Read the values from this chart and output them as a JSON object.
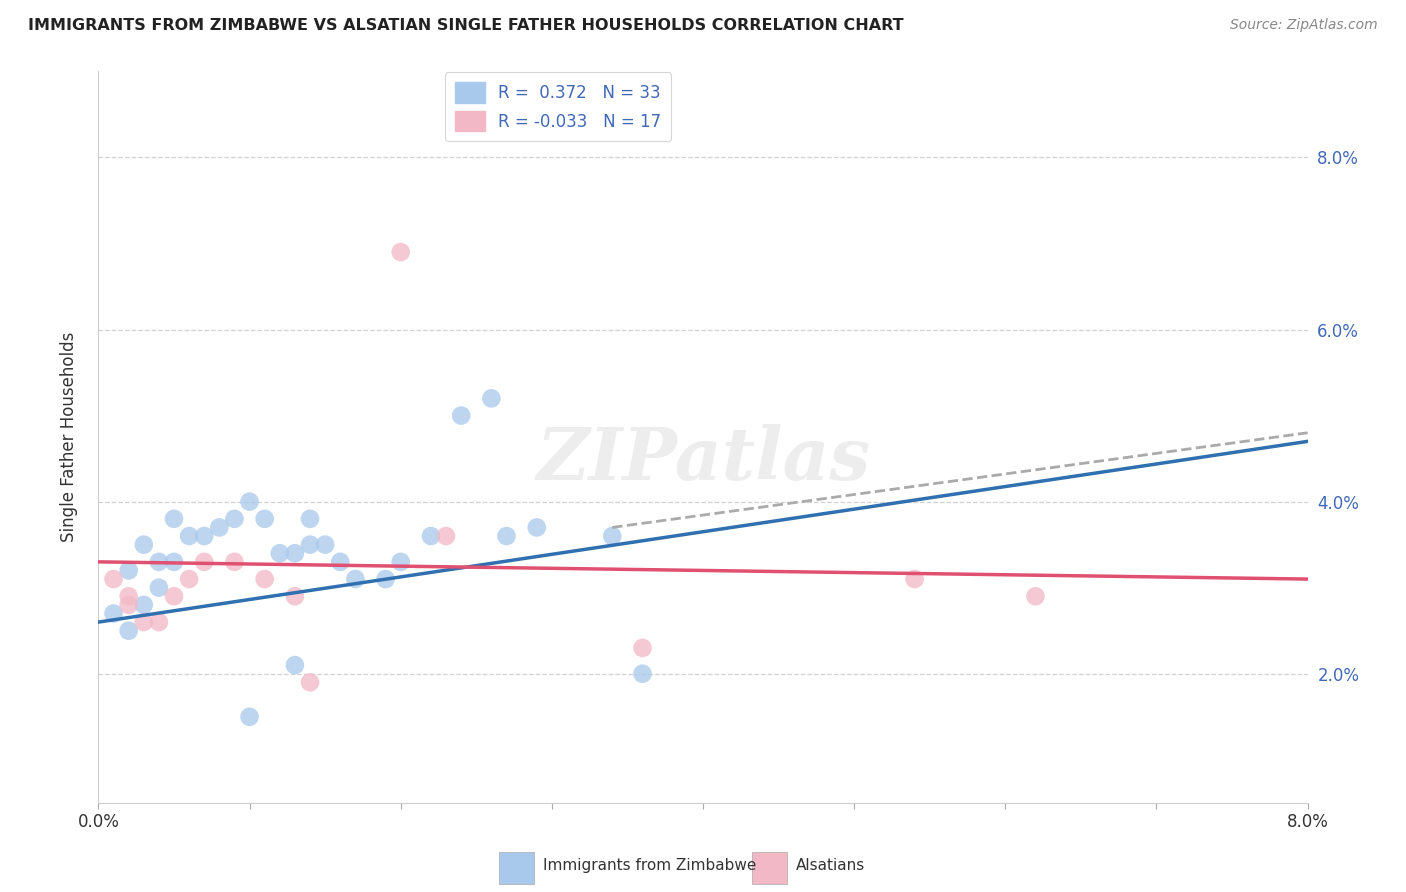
{
  "title": "IMMIGRANTS FROM ZIMBABWE VS ALSATIAN SINGLE FATHER HOUSEHOLDS CORRELATION CHART",
  "source": "Source: ZipAtlas.com",
  "ylabel": "Single Father Households",
  "xlim": [
    0.0,
    0.08
  ],
  "ylim": [
    0.005,
    0.09
  ],
  "xticks": [
    0.0,
    0.01,
    0.02,
    0.03,
    0.04,
    0.05,
    0.06,
    0.07,
    0.08
  ],
  "xtick_labels": [
    "0.0%",
    "",
    "",
    "",
    "",
    "",
    "",
    "",
    "8.0%"
  ],
  "yticks_right": [
    0.02,
    0.04,
    0.06,
    0.08
  ],
  "ytick_labels_right": [
    "2.0%",
    "4.0%",
    "6.0%",
    "8.0%"
  ],
  "yticks_grid": [
    0.02,
    0.04,
    0.06,
    0.08
  ],
  "blue_color": "#A8C8EC",
  "pink_color": "#F2B8C6",
  "line_blue": "#3070B0",
  "line_pink": "#E05070",
  "line_gray_dash": "#AAAAAA",
  "background_color": "#FFFFFF",
  "watermark_text": "ZIPatlas",
  "blue_points": [
    [
      0.001,
      0.027
    ],
    [
      0.002,
      0.025
    ],
    [
      0.003,
      0.028
    ],
    [
      0.004,
      0.03
    ],
    [
      0.002,
      0.032
    ],
    [
      0.003,
      0.035
    ],
    [
      0.004,
      0.033
    ],
    [
      0.005,
      0.033
    ],
    [
      0.005,
      0.038
    ],
    [
      0.006,
      0.036
    ],
    [
      0.007,
      0.036
    ],
    [
      0.008,
      0.037
    ],
    [
      0.009,
      0.038
    ],
    [
      0.01,
      0.04
    ],
    [
      0.011,
      0.038
    ],
    [
      0.012,
      0.034
    ],
    [
      0.013,
      0.034
    ],
    [
      0.014,
      0.038
    ],
    [
      0.014,
      0.035
    ],
    [
      0.015,
      0.035
    ],
    [
      0.016,
      0.033
    ],
    [
      0.017,
      0.031
    ],
    [
      0.019,
      0.031
    ],
    [
      0.02,
      0.033
    ],
    [
      0.022,
      0.036
    ],
    [
      0.024,
      0.05
    ],
    [
      0.026,
      0.052
    ],
    [
      0.027,
      0.036
    ],
    [
      0.029,
      0.037
    ],
    [
      0.034,
      0.036
    ],
    [
      0.036,
      0.02
    ],
    [
      0.01,
      0.015
    ],
    [
      0.013,
      0.021
    ]
  ],
  "pink_points": [
    [
      0.001,
      0.031
    ],
    [
      0.002,
      0.029
    ],
    [
      0.002,
      0.028
    ],
    [
      0.003,
      0.026
    ],
    [
      0.004,
      0.026
    ],
    [
      0.005,
      0.029
    ],
    [
      0.006,
      0.031
    ],
    [
      0.007,
      0.033
    ],
    [
      0.009,
      0.033
    ],
    [
      0.011,
      0.031
    ],
    [
      0.013,
      0.029
    ],
    [
      0.014,
      0.019
    ],
    [
      0.02,
      0.069
    ],
    [
      0.023,
      0.036
    ],
    [
      0.054,
      0.031
    ],
    [
      0.062,
      0.029
    ],
    [
      0.036,
      0.023
    ]
  ],
  "blue_trend": [
    0.0,
    0.026,
    0.08,
    0.047
  ],
  "pink_trend": [
    0.0,
    0.033,
    0.08,
    0.031
  ],
  "gray_dash": [
    0.034,
    0.037,
    0.08,
    0.048
  ],
  "legend_label_blue": "R =  0.372   N = 33",
  "legend_label_pink": "R = -0.033   N = 17",
  "right_axis_color": "#4169B8",
  "bottom_legend_blue": "Immigrants from Zimbabwe",
  "bottom_legend_pink": "Alsatians"
}
